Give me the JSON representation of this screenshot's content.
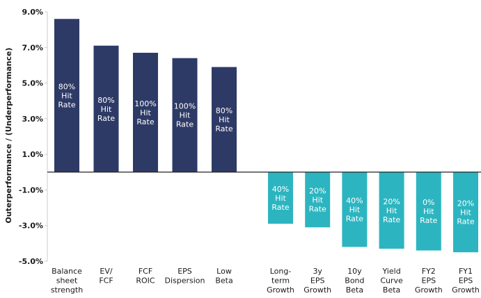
{
  "chart_data": {
    "type": "bar",
    "y_axis_label": "Outerperformance / (Underperformance)",
    "categories": [
      [
        "Balance",
        "sheet",
        "strength"
      ],
      [
        "EV/",
        "FCF"
      ],
      [
        "FCF",
        "ROIC"
      ],
      [
        "EPS",
        "Dispersion"
      ],
      [
        "Low",
        "Beta"
      ],
      [
        "Long-",
        "term",
        "Growth"
      ],
      [
        "3y",
        "EPS",
        "Growth"
      ],
      [
        "10y",
        "Bond",
        "Beta"
      ],
      [
        "Yield",
        "Curve",
        "Beta"
      ],
      [
        "FY2",
        "EPS",
        "Growth"
      ],
      [
        "FY1",
        "EPS",
        "Growth"
      ]
    ],
    "values": [
      8.6,
      7.1,
      6.7,
      6.4,
      5.9,
      -2.9,
      -3.1,
      -4.2,
      -4.3,
      -4.4,
      -4.5
    ],
    "annotations": [
      [
        "80%",
        "Hit",
        "Rate"
      ],
      [
        "80%",
        "Hit",
        "Rate"
      ],
      [
        "100%",
        "Hit",
        "Rate"
      ],
      [
        "100%",
        "Hit",
        "Rate"
      ],
      [
        "80%",
        "Hit",
        "Rate"
      ],
      [
        "40%",
        "Hit",
        "Rate"
      ],
      [
        "20%",
        "Hit",
        "Rate"
      ],
      [
        "40%",
        "Hit",
        "Rate"
      ],
      [
        "20%",
        "Hit",
        "Rate"
      ],
      [
        "0%",
        "Hit",
        "Rate"
      ],
      [
        "20%",
        "Hit",
        "Rate"
      ]
    ],
    "colors": [
      "#2e3a66",
      "#2e3a66",
      "#2e3a66",
      "#2e3a66",
      "#2e3a66",
      "#2cb5c0",
      "#2cb5c0",
      "#2cb5c0",
      "#2cb5c0",
      "#2cb5c0",
      "#2cb5c0"
    ],
    "ylim": [
      -5,
      9
    ],
    "yticks": [
      {
        "value": -5,
        "label": "-5.0%"
      },
      {
        "value": -3,
        "label": "-3.0%"
      },
      {
        "value": -1,
        "label": "-1.0%"
      },
      {
        "value": 1,
        "label": "1.0%"
      },
      {
        "value": 3,
        "label": "3.0%"
      },
      {
        "value": 5,
        "label": "5.0%"
      },
      {
        "value": 7,
        "label": "7.0%"
      },
      {
        "value": 9,
        "label": "9.0%"
      }
    ],
    "grid": false
  }
}
